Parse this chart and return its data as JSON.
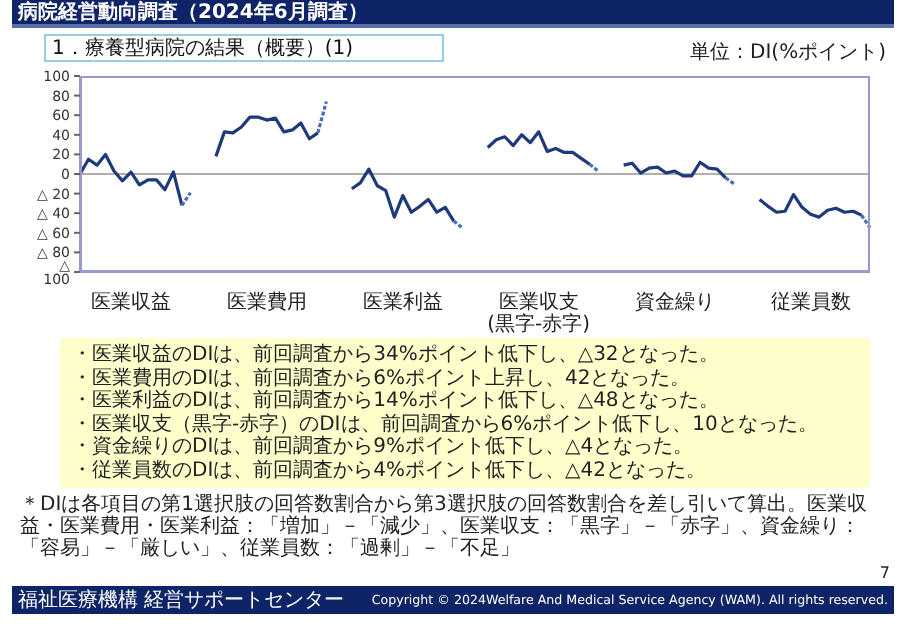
{
  "chart_data": {
    "type": "line",
    "title": "病院経営動向調査（2024年6月調査）",
    "subtitle": "1．療養型病院の結果（概要）(1)",
    "ylabel": "単位：DI(%ポイント)",
    "categories": [
      null,
      null,
      null,
      null,
      null,
      null,
      "医業収益",
      null,
      null,
      null,
      null,
      null,
      null,
      null,
      null,
      null,
      null,
      null,
      null,
      null,
      null,
      null,
      "医業費用",
      null,
      null,
      null,
      null,
      null,
      null,
      null,
      null,
      null,
      null,
      null,
      null,
      null,
      null,
      null,
      "医業利益",
      null,
      null,
      null,
      null,
      null,
      null,
      null,
      null,
      null,
      null,
      null,
      null,
      null,
      null,
      null,
      "医業収支\n(黒字-赤字)",
      null,
      null,
      null,
      null,
      null,
      null,
      null,
      null,
      null,
      null,
      null,
      null,
      null,
      null,
      null,
      "資金繰り",
      null,
      null,
      null,
      null,
      null,
      null,
      null,
      null,
      null,
      null,
      null,
      null,
      null,
      null,
      null,
      "従業員数",
      null,
      null,
      null,
      null,
      null,
      null,
      null
    ],
    "series": [
      {
        "color": "#1f3a7a",
        "values": [
          0,
          15,
          9,
          20,
          3,
          -7,
          2,
          -11,
          -6,
          -6,
          -16,
          2,
          -32,
          null,
          null,
          null,
          18,
          43,
          42,
          48,
          58,
          58,
          55,
          57,
          43,
          45,
          52,
          36,
          42,
          null,
          null,
          null,
          -15,
          -9,
          5,
          -12,
          -17,
          -44,
          -22,
          -39,
          -33,
          -26,
          -39,
          -34,
          -48,
          null,
          null,
          null,
          27,
          35,
          38,
          29,
          40,
          32,
          43,
          23,
          26,
          22,
          22,
          16,
          10,
          null,
          null,
          null,
          9,
          11,
          1,
          6,
          7,
          1,
          3,
          -2,
          -2,
          12,
          6,
          5,
          -4,
          null,
          null,
          null,
          -26,
          -33,
          -39,
          -38,
          -21,
          -34,
          -41,
          -44,
          -37,
          -35,
          -39,
          -38,
          -42,
          null
        ]
      },
      {
        "color": "#4a6fb5",
        "line_style": "dashed",
        "values": [
          null,
          null,
          null,
          null,
          null,
          null,
          null,
          null,
          null,
          null,
          null,
          null,
          -32,
          -19,
          null,
          null,
          null,
          null,
          null,
          null,
          null,
          null,
          null,
          null,
          null,
          null,
          null,
          null,
          42,
          74,
          null,
          null,
          null,
          null,
          null,
          null,
          null,
          null,
          null,
          null,
          null,
          null,
          null,
          null,
          -48,
          -55,
          null,
          null,
          null,
          null,
          null,
          null,
          null,
          null,
          null,
          null,
          null,
          null,
          null,
          null,
          10,
          3,
          null,
          null,
          null,
          null,
          null,
          null,
          null,
          null,
          null,
          null,
          null,
          null,
          null,
          null,
          -4,
          -10,
          null,
          null,
          null,
          null,
          null,
          null,
          null,
          null,
          null,
          null,
          null,
          null,
          null,
          null,
          -42,
          -55
        ]
      }
    ],
    "ylim": [
      -100,
      100
    ],
    "yticks": [
      {
        "value": -100,
        "label": "△ 100"
      },
      {
        "value": -80,
        "label": "△ 80"
      },
      {
        "value": -60,
        "label": "△ 60"
      },
      {
        "value": -40,
        "label": "△ 40"
      },
      {
        "value": -20,
        "label": "△ 20"
      },
      0,
      20,
      40,
      60,
      80,
      100
    ],
    "ref_lines": [
      {
        "axis": "y",
        "value": 0,
        "color": "#b0b0b0"
      }
    ],
    "marker": "none",
    "line_style": "solid",
    "annotations": [
      "・医業収益のDIは、前回調査から34%ポイント低下し、△32となった。",
      "・医業費用のDIは、前回調査から6%ポイント上昇し、42となった。",
      "・医業利益のDIは、前回調査から14%ポイント低下し、△48となった。",
      "・医業収支（黒字-赤字）のDIは、前回調査から6%ポイント低下し、10となった。",
      "・資金繰りのDIは、前回調査から9%ポイント低下し、△4となった。",
      "・従業員数のDIは、前回調査から4%ポイント低下し、△42となった。",
      "＊DIは各項目の第1選択肢の回答数割合から第3選択肢の回答数割合を差し引いて算出。医業収益・医業費用・医業利益：「増加」－「減少」、医業収支：「黒字」－「赤字」、資金繰り：「容易」－「厳しい」、従業員数：「過剰」－「不足」",
      "7",
      "福祉医療機構 経営サポートセンター",
      "Copyright © 2024Welfare And Medical Service Agency (WAM). All rights reserved."
    ]
  }
}
